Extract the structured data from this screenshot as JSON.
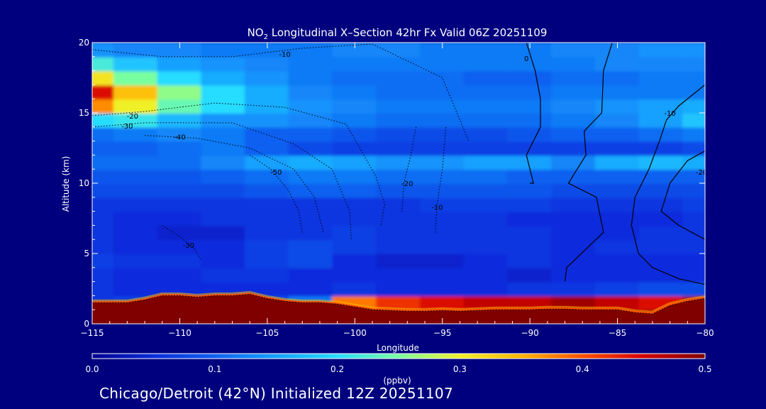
{
  "footer": "Chicago/Detroit (42°N) Initialized 12Z 20251107",
  "colors": {
    "background": "#00007f",
    "text": "#ffffff",
    "terrain": "#800000",
    "contour": "#000000",
    "colorscale": [
      "#00008f",
      "#0a2cdc",
      "#0f60f0",
      "#14a0ff",
      "#28dcff",
      "#78ffa0",
      "#f0f028",
      "#ffb400",
      "#ff5000",
      "#d20000",
      "#800000"
    ]
  },
  "chart_data": {
    "type": "heatmap",
    "title_prefix": "NO",
    "title_sub": "2",
    "title_rest": " Longitudinal X–Section 42hr  Fx Valid 06Z 20251109",
    "xlabel": "Longitude",
    "ylabel": "Altitude (km)",
    "xlim": [
      -115,
      -80
    ],
    "ylim": [
      0,
      20
    ],
    "xticks": [
      -115,
      -110,
      -105,
      -100,
      -95,
      -90,
      -85,
      -80
    ],
    "xtick_labels": [
      "−115",
      "−110",
      "−105",
      "−100",
      "−95",
      "−90",
      "−85",
      "−80"
    ],
    "yticks": [
      0,
      5,
      10,
      15,
      20
    ],
    "ytick_labels": [
      "0",
      "5",
      "10",
      "15",
      "20"
    ],
    "colorbar": {
      "label": "(ppbv)",
      "range": [
        0.0,
        0.5
      ],
      "ticks": [
        0.0,
        0.1,
        0.2,
        0.3,
        0.4,
        0.5
      ],
      "tick_labels": [
        "0.0",
        "0.1",
        "0.2",
        "0.3",
        "0.4",
        "0.5"
      ]
    },
    "no2_field": {
      "x": [
        -115,
        -112.5,
        -110,
        -107.5,
        -105,
        -102.5,
        -100,
        -97.5,
        -95,
        -92.5,
        -90,
        -87.5,
        -85,
        -82.5,
        -80
      ],
      "y": [
        0.5,
        1.5,
        2.5,
        3.5,
        4.5,
        5.5,
        6.5,
        7.5,
        8.5,
        9.5,
        10.5,
        11.5,
        12.5,
        13.5,
        14.5,
        15.5,
        16.5,
        17.5,
        18.5,
        19.5
      ],
      "values": [
        [
          0.5,
          0.5,
          0.5,
          0.5,
          0.5,
          0.5,
          0.5,
          0.5,
          0.5,
          0.5,
          0.5,
          0.5,
          0.5,
          0.5,
          0.5
        ],
        [
          0.06,
          0.07,
          0.06,
          0.06,
          0.08,
          0.12,
          0.38,
          0.42,
          0.44,
          0.46,
          0.46,
          0.48,
          0.46,
          0.44,
          0.48
        ],
        [
          0.06,
          0.05,
          0.05,
          0.05,
          0.05,
          0.05,
          0.06,
          0.05,
          0.05,
          0.05,
          0.06,
          0.06,
          0.07,
          0.08,
          0.08
        ],
        [
          0.06,
          0.05,
          0.05,
          0.06,
          0.06,
          0.05,
          0.05,
          0.05,
          0.05,
          0.05,
          0.04,
          0.05,
          0.05,
          0.05,
          0.05
        ],
        [
          0.07,
          0.06,
          0.06,
          0.05,
          0.07,
          0.08,
          0.05,
          0.04,
          0.04,
          0.05,
          0.06,
          0.05,
          0.05,
          0.05,
          0.05
        ],
        [
          0.06,
          0.05,
          0.05,
          0.05,
          0.07,
          0.08,
          0.07,
          0.06,
          0.06,
          0.06,
          0.06,
          0.05,
          0.06,
          0.06,
          0.06
        ],
        [
          0.06,
          0.05,
          0.04,
          0.04,
          0.06,
          0.06,
          0.07,
          0.06,
          0.06,
          0.06,
          0.06,
          0.05,
          0.05,
          0.06,
          0.06
        ],
        [
          0.06,
          0.05,
          0.05,
          0.06,
          0.06,
          0.06,
          0.06,
          0.06,
          0.06,
          0.06,
          0.05,
          0.05,
          0.05,
          0.05,
          0.06
        ],
        [
          0.06,
          0.06,
          0.06,
          0.06,
          0.06,
          0.06,
          0.06,
          0.06,
          0.07,
          0.07,
          0.07,
          0.06,
          0.06,
          0.06,
          0.07
        ],
        [
          0.08,
          0.08,
          0.08,
          0.08,
          0.09,
          0.1,
          0.1,
          0.09,
          0.09,
          0.09,
          0.09,
          0.08,
          0.08,
          0.08,
          0.08
        ],
        [
          0.09,
          0.09,
          0.09,
          0.1,
          0.11,
          0.12,
          0.12,
          0.11,
          0.11,
          0.11,
          0.1,
          0.1,
          0.1,
          0.1,
          0.1
        ],
        [
          0.11,
          0.11,
          0.11,
          0.13,
          0.15,
          0.16,
          0.15,
          0.14,
          0.14,
          0.15,
          0.15,
          0.13,
          0.16,
          0.17,
          0.16
        ],
        [
          0.1,
          0.1,
          0.11,
          0.12,
          0.1,
          0.08,
          0.07,
          0.07,
          0.07,
          0.07,
          0.07,
          0.07,
          0.07,
          0.07,
          0.08
        ],
        [
          0.11,
          0.12,
          0.13,
          0.12,
          0.1,
          0.1,
          0.09,
          0.08,
          0.08,
          0.08,
          0.09,
          0.1,
          0.1,
          0.11,
          0.12
        ],
        [
          0.2,
          0.21,
          0.17,
          0.14,
          0.14,
          0.13,
          0.12,
          0.11,
          0.11,
          0.11,
          0.11,
          0.12,
          0.13,
          0.15,
          0.18
        ],
        [
          0.37,
          0.3,
          0.24,
          0.2,
          0.16,
          0.14,
          0.13,
          0.12,
          0.12,
          0.12,
          0.12,
          0.13,
          0.14,
          0.15,
          0.16
        ],
        [
          0.44,
          0.34,
          0.26,
          0.2,
          0.16,
          0.13,
          0.12,
          0.11,
          0.11,
          0.11,
          0.11,
          0.12,
          0.12,
          0.12,
          0.12
        ],
        [
          0.31,
          0.25,
          0.2,
          0.16,
          0.14,
          0.12,
          0.11,
          0.11,
          0.11,
          0.1,
          0.1,
          0.11,
          0.11,
          0.12,
          0.12
        ],
        [
          0.22,
          0.18,
          0.15,
          0.14,
          0.13,
          0.12,
          0.12,
          0.12,
          0.12,
          0.12,
          0.12,
          0.12,
          0.13,
          0.13,
          0.13
        ],
        [
          0.14,
          0.13,
          0.13,
          0.12,
          0.12,
          0.12,
          0.13,
          0.13,
          0.12,
          0.12,
          0.12,
          0.13,
          0.13,
          0.14,
          0.14
        ]
      ]
    },
    "terrain_top": {
      "x": [
        -115,
        -114,
        -113,
        -112,
        -111,
        -110,
        -109,
        -108,
        -107,
        -106,
        -105,
        -104,
        -103,
        -102,
        -101,
        -100,
        -99,
        -98,
        -97,
        -96,
        -95,
        -94,
        -93,
        -92,
        -91,
        -90,
        -89,
        -88,
        -87,
        -86,
        -85,
        -84,
        -83,
        -82,
        -81,
        -80
      ],
      "y": [
        1.5,
        1.5,
        1.5,
        1.7,
        2.0,
        2.0,
        1.9,
        2.0,
        2.0,
        2.1,
        1.8,
        1.6,
        1.5,
        1.5,
        1.4,
        1.2,
        1.0,
        0.95,
        0.9,
        0.9,
        0.95,
        0.9,
        0.95,
        1.0,
        1.0,
        1.0,
        1.05,
        1.05,
        1.0,
        1.0,
        1.0,
        0.8,
        0.7,
        1.3,
        1.6,
        1.8
      ]
    },
    "contours": [
      {
        "label": "-10",
        "style": "dotted",
        "label_at": [
          -104,
          19.2
        ],
        "x": [
          -115,
          -111,
          -107,
          -103,
          -99,
          -95,
          -93.5
        ],
        "y": [
          19.5,
          19.0,
          19.0,
          19.6,
          19.9,
          17.5,
          13.0
        ]
      },
      {
        "label": "-20",
        "style": "dotted",
        "label_at": [
          -112.7,
          14.8
        ],
        "x": [
          -115,
          -112,
          -108,
          -104,
          -100.5,
          -98.8,
          -98.3,
          -98.5
        ],
        "y": [
          14.8,
          15.1,
          15.7,
          15.4,
          14.2,
          10.5,
          8.5,
          7.0
        ]
      },
      {
        "label": "-30",
        "style": "dotted",
        "label_at": [
          -113,
          14.1
        ],
        "x": [
          -115,
          -112,
          -107,
          -103.5,
          -101.3,
          -100.3,
          -100.2
        ],
        "y": [
          14.0,
          14.3,
          14.3,
          12.8,
          11.0,
          8.0,
          6.0
        ]
      },
      {
        "label": "-40",
        "style": "dotted",
        "label_at": [
          -110,
          13.3
        ],
        "x": [
          -112,
          -109,
          -106,
          -103.5,
          -102.3,
          -101.8
        ],
        "y": [
          13.4,
          13.2,
          12.5,
          11.0,
          9.0,
          6.5
        ]
      },
      {
        "label": "-50",
        "style": "dotted",
        "label_at": [
          -104.5,
          10.8
        ],
        "x": [
          -106,
          -104.8,
          -103.8,
          -103.2,
          -103.0
        ],
        "y": [
          12.0,
          11.0,
          9.5,
          8.0,
          6.5
        ]
      },
      {
        "label": "-30",
        "style": "dotted",
        "label_at": [
          -109.5,
          5.6
        ],
        "x": [
          -111,
          -110,
          -109.2,
          -108.8
        ],
        "y": [
          7.0,
          6.2,
          5.4,
          4.6
        ]
      },
      {
        "label": "-20",
        "style": "dotted",
        "label_at": [
          -97,
          10.0
        ],
        "x": [
          -96.5,
          -96.8,
          -97.2,
          -97.3
        ],
        "y": [
          14.0,
          12.0,
          10.0,
          8.0
        ]
      },
      {
        "label": "-10",
        "style": "dotted",
        "label_at": [
          -95.3,
          8.3
        ],
        "x": [
          -94.8,
          -95.0,
          -95.3,
          -95.4
        ],
        "y": [
          14.0,
          11.0,
          8.5,
          6.5
        ]
      },
      {
        "label": "0",
        "style": "solid",
        "label_at": [
          -90.2,
          18.9
        ],
        "x": [
          -90.2,
          -89.7,
          -89.4,
          -89.4,
          -90.2,
          -89.8,
          -90.0
        ],
        "y": [
          20.0,
          18.0,
          16.0,
          14.0,
          12.0,
          10.0,
          10.0
        ]
      },
      {
        "label": "",
        "style": "solid",
        "x": [
          -85.3,
          -85.8,
          -85.9,
          -86.9,
          -86.8,
          -87.8,
          -86.2,
          -85.8,
          -87.9,
          -88.0
        ],
        "y": [
          20.0,
          18.0,
          15.0,
          13.7,
          12.0,
          10.0,
          9.0,
          6.5,
          4.0,
          3.0
        ]
      },
      {
        "label": "-10",
        "style": "solid",
        "label_at": [
          -82.0,
          15.0
        ],
        "x": [
          -80.0,
          -81.5,
          -82.2,
          -82.6,
          -83.2,
          -84.0,
          -84.2,
          -83.8,
          -83.0,
          -81.5,
          -80.0
        ],
        "y": [
          17.0,
          15.5,
          14.5,
          13.0,
          11.0,
          9.0,
          7.0,
          5.0,
          4.0,
          3.2,
          2.8
        ]
      },
      {
        "label": "-20",
        "style": "solid",
        "label_at": [
          -80.2,
          10.8
        ],
        "x": [
          -80.0,
          -81.0,
          -82.0,
          -82.5,
          -81.5,
          -80.0
        ],
        "y": [
          12.3,
          11.6,
          10.0,
          8.0,
          7.0,
          6.0
        ]
      }
    ]
  }
}
